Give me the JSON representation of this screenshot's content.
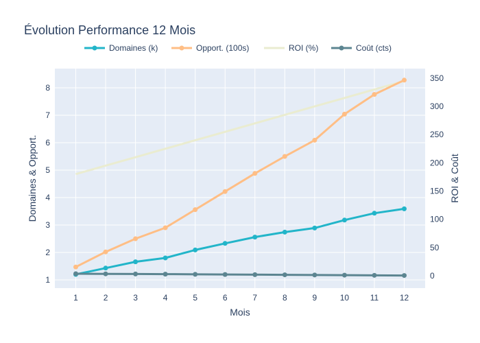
{
  "chart_data": {
    "type": "line",
    "title": "Évolution Performance 12 Mois",
    "xlabel": "Mois",
    "ylabel_left": "Domaines & Opport.",
    "ylabel_right": "ROI & Coût",
    "x": [
      1,
      2,
      3,
      4,
      5,
      6,
      7,
      8,
      9,
      10,
      11,
      12
    ],
    "xlim": [
      0.3,
      12.7
    ],
    "ylim_left": [
      0.7,
      8.7
    ],
    "ylim_right": [
      -22,
      367
    ],
    "yticks_left": [
      1,
      2,
      3,
      4,
      5,
      6,
      7,
      8
    ],
    "yticks_right": [
      0,
      50,
      100,
      150,
      200,
      250,
      300,
      350
    ],
    "grid": true,
    "legend": "top",
    "series": [
      {
        "name": "Domaines (k)",
        "axis": "left",
        "color": "#22b5c9",
        "markers": true,
        "values": [
          1.2,
          1.43,
          1.66,
          1.8,
          2.09,
          2.33,
          2.56,
          2.74,
          2.89,
          3.18,
          3.43,
          3.59
        ]
      },
      {
        "name": "Opport. (100s)",
        "axis": "left",
        "color": "#ffbe85",
        "markers": true,
        "values": [
          1.47,
          2.02,
          2.5,
          2.9,
          3.56,
          4.22,
          4.88,
          5.5,
          6.09,
          7.04,
          7.76,
          8.28
        ]
      },
      {
        "name": "ROI (%)",
        "axis": "right",
        "color": "#eaecd0",
        "markers": false,
        "values": [
          180,
          195,
          210,
          225,
          240,
          255,
          270,
          285,
          300,
          315,
          330,
          345
        ]
      },
      {
        "name": "Coût (cts)",
        "axis": "right",
        "color": "#5c8591",
        "markers": true,
        "values": [
          3.5,
          3.3,
          3.1,
          2.8,
          2.5,
          2.2,
          1.9,
          1.6,
          1.3,
          1.0,
          0.7,
          0.4
        ]
      }
    ]
  }
}
